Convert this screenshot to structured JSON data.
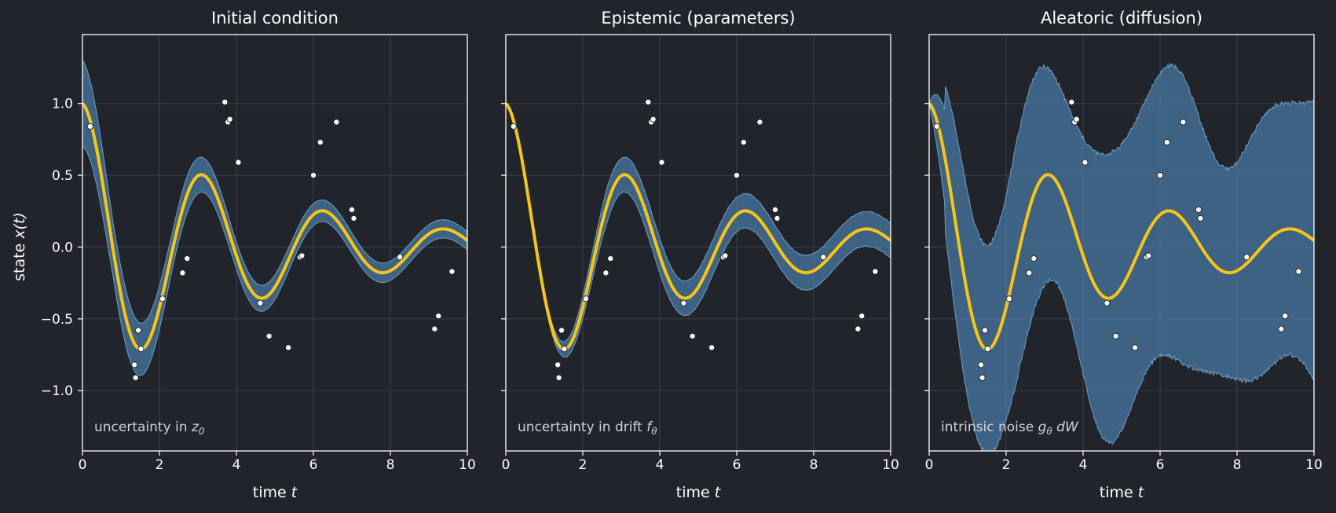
{
  "colors": {
    "background": "#21252b",
    "band": "#4a7aa5",
    "mean": "#f5c518",
    "points": "#ffffff",
    "grid": "#3a4049",
    "frame": "#ffffff"
  },
  "chart_data": {
    "type": "line",
    "shared": {
      "xlabel_text": "time ",
      "xlabel_var": "t",
      "ylabel_text": "state ",
      "ylabel_var": "x(t)",
      "xlim": [
        0,
        10
      ],
      "ylim": [
        -1.42,
        1.48
      ],
      "xticks": [
        0,
        2,
        4,
        6,
        8,
        10
      ],
      "xtick_labels": [
        "0",
        "2",
        "4",
        "6",
        "8",
        "10"
      ],
      "yticks": [
        1.0,
        0.5,
        0.0,
        -0.5,
        -1.0
      ],
      "ytick_labels": [
        "1.0",
        "0.5",
        "0.0",
        "−0.5",
        "−1.0"
      ],
      "grid": true,
      "observations": {
        "x": [
          0.2,
          1.35,
          1.38,
          1.45,
          1.52,
          2.08,
          2.6,
          2.72,
          3.7,
          3.78,
          3.83,
          4.05,
          4.62,
          4.85,
          5.35,
          5.65,
          5.7,
          6.0,
          6.18,
          6.6,
          7.0,
          7.05,
          8.25,
          9.15,
          9.25,
          9.6
        ],
        "y": [
          0.84,
          -0.82,
          -0.91,
          -0.58,
          -0.71,
          -0.36,
          -0.18,
          -0.08,
          1.01,
          0.87,
          0.89,
          0.59,
          -0.39,
          -0.62,
          -0.7,
          -0.07,
          -0.06,
          0.5,
          0.73,
          0.87,
          0.26,
          0.2,
          -0.07,
          -0.57,
          -0.48,
          -0.17
        ]
      }
    },
    "panels": [
      {
        "title": "Initial condition",
        "annotation_text": "uncertainty in ",
        "annotation_math": "z",
        "annotation_sub": "0",
        "annotation_tail": "",
        "mean": {
          "amplitude": 1.0,
          "decay": 0.22,
          "omega": 2.0
        },
        "band": {
          "kind": "initial",
          "width_t0": 0.3,
          "width_floor": 0.06,
          "width_decay": 0.2,
          "jitter": 0.0
        }
      },
      {
        "title": "Epistemic (parameters)",
        "annotation_text": "uncertainty in drift ",
        "annotation_math": "f",
        "annotation_sub": "θ",
        "annotation_tail": "",
        "mean": {
          "amplitude": 1.0,
          "decay": 0.22,
          "omega": 2.0
        },
        "band": {
          "kind": "epistemic",
          "width_t0": 0.0,
          "width_growth": 0.012,
          "width_max": 0.12,
          "jitter": 0.008
        }
      },
      {
        "title": "Aleatoric (diffusion)",
        "annotation_text": "intrinsic noise ",
        "annotation_math": "g",
        "annotation_sub": "θ",
        "annotation_tail": " dW",
        "mean": {
          "amplitude": 1.0,
          "decay": 0.22,
          "omega": 2.0
        },
        "band": {
          "kind": "aleatoric",
          "width_t0": 0.0,
          "width_max": 0.9,
          "rise": 1.1,
          "jitter": 0.03
        }
      }
    ]
  }
}
